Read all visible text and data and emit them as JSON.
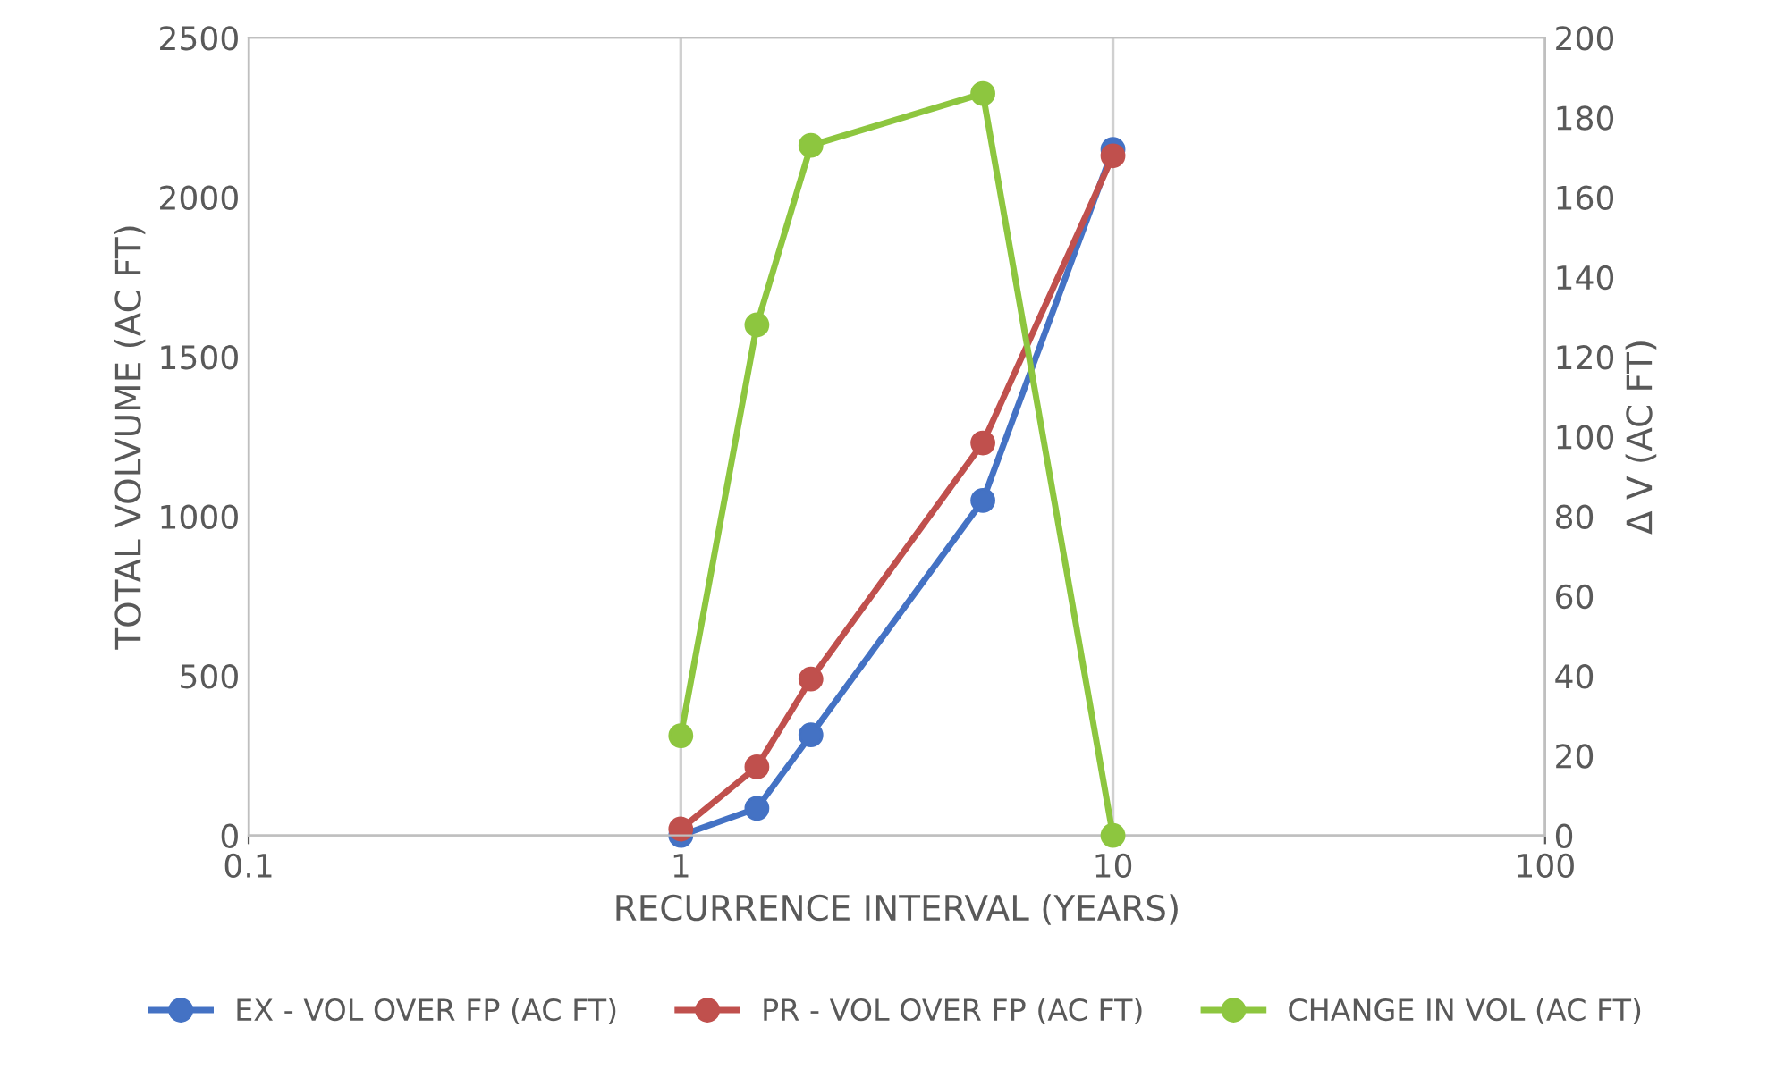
{
  "chart_data": {
    "type": "line",
    "xlabel": "RECURRENCE INTERVAL (YEARS)",
    "ylabel": "TOTAL VOLVUME (AC FT)",
    "y2label": "Δ V (AC FT)",
    "log": "x",
    "xlim": [
      0.1,
      100
    ],
    "xticks": [
      0.1,
      1,
      10,
      100
    ],
    "ylim": [
      0,
      2500
    ],
    "yticks": [
      0,
      500,
      1000,
      1500,
      2000,
      2500
    ],
    "y2lim": [
      0,
      200
    ],
    "y2ticks": [
      0,
      20,
      40,
      60,
      80,
      100,
      120,
      140,
      160,
      180,
      200
    ],
    "grid": "x",
    "legend": "bottom",
    "marker": "circle",
    "line_style": "solid",
    "series": [
      {
        "name": "EX - VOL OVER FP (AC FT)",
        "color": "#4472c4",
        "x": [
          1,
          1.5,
          2,
          5,
          10
        ],
        "values": [
          0,
          85,
          315,
          1050,
          2150
        ]
      },
      {
        "name": "PR - VOL OVER FP (AC FT)",
        "color": "#c0504d",
        "x": [
          1,
          1.5,
          2,
          5,
          10
        ],
        "values": [
          20,
          215,
          490,
          1230,
          2130
        ]
      },
      {
        "name": "CHANGE IN VOL (AC FT)",
        "color": "#8dc63f",
        "x": [
          1,
          1.5,
          2,
          5,
          10
        ],
        "values": [
          25,
          128,
          173,
          186,
          0
        ],
        "axis": "y2"
      }
    ]
  }
}
